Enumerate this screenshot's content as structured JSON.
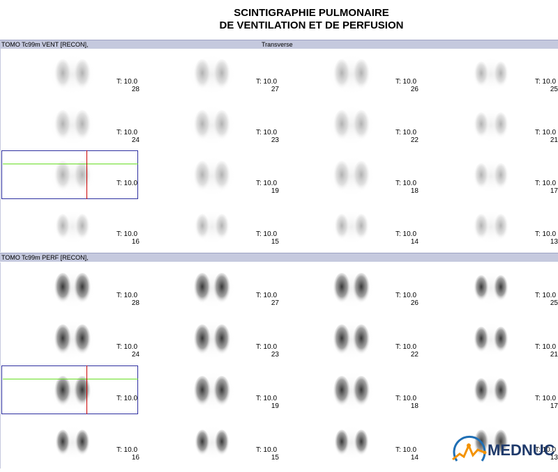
{
  "title": {
    "line1": "SCINTIGRAPHIE PULMONAIRE",
    "line2": "DE VENTILATION ET DE PERFUSION"
  },
  "ventilation": {
    "study_label": "TOMO Tc99m VENT [RECON],",
    "orientation": "Transverse",
    "time_label": "T: 10.0",
    "slices": [
      "28",
      "27",
      "26",
      "25",
      "24",
      "23",
      "22",
      "21",
      "",
      "19",
      "18",
      "17",
      "16",
      "15",
      "14",
      "13"
    ]
  },
  "perfusion": {
    "study_label": "TOMO Tc99m PERF [RECON],",
    "time_label": "T: 10.0",
    "slices": [
      "28",
      "27",
      "26",
      "25",
      "24",
      "23",
      "22",
      "21",
      "",
      "19",
      "18",
      "17",
      "16",
      "15",
      "14",
      "13"
    ]
  },
  "logo": {
    "text": "MEDNUC",
    "icon": "mednuc-logo-icon",
    "color": "#1f3a6b",
    "accent": "#f39200"
  }
}
